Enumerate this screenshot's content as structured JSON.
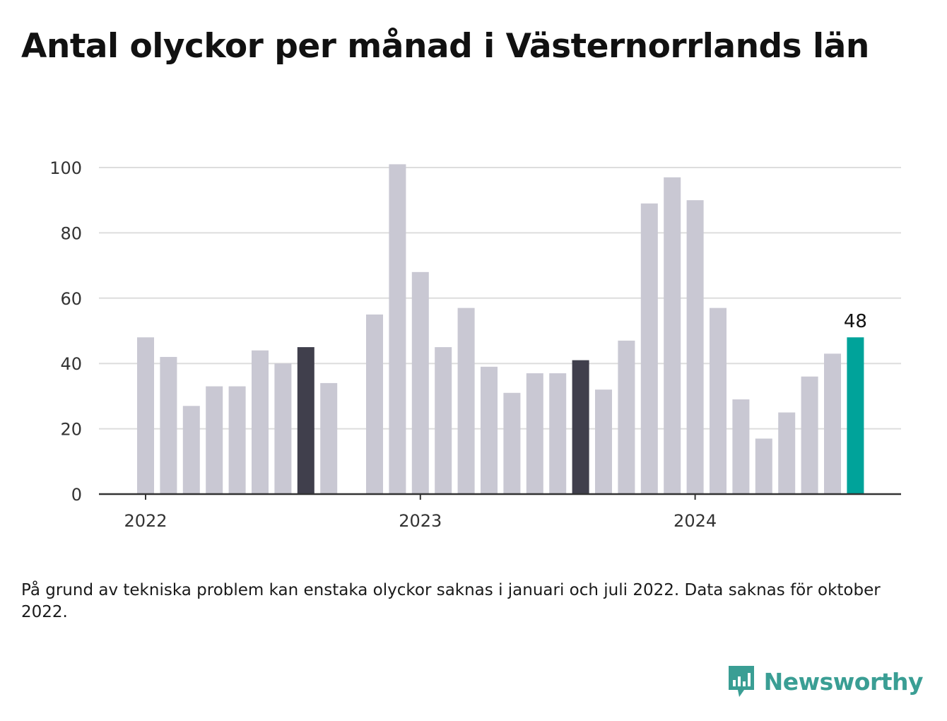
{
  "title": "Antal olyckor per månad i Västernorrlands län",
  "note": "På grund av tekniska problem kan enstaka olyckor saknas i januari och juli 2022. Data saknas för oktober 2022.",
  "brand": {
    "name": "Newsworthy",
    "icon": "newsworthy-logo-icon",
    "color": "#3a9e94"
  },
  "colors": {
    "default": "#c9c8d3",
    "highlight": "#403f4c",
    "latest": "#00a39a",
    "grid": "#dddddd",
    "axis": "#333333"
  },
  "chart_data": {
    "type": "bar",
    "title": "Antal olyckor per månad i Västernorrlands län",
    "xlabel": "",
    "ylabel": "",
    "ylim": [
      0,
      100
    ],
    "yticks": [
      0,
      20,
      40,
      60,
      80,
      100
    ],
    "xtick_labels": [
      {
        "label": "2022",
        "category": "2022-01"
      },
      {
        "label": "2023",
        "category": "2023-01"
      },
      {
        "label": "2024",
        "category": "2024-01"
      }
    ],
    "grid": true,
    "categories": [
      "2022-01",
      "2022-02",
      "2022-03",
      "2022-04",
      "2022-05",
      "2022-06",
      "2022-07",
      "2022-08",
      "2022-09",
      "2022-10",
      "2022-11",
      "2022-12",
      "2023-01",
      "2023-02",
      "2023-03",
      "2023-04",
      "2023-05",
      "2023-06",
      "2023-07",
      "2023-08",
      "2023-09",
      "2023-10",
      "2023-11",
      "2023-12",
      "2024-01",
      "2024-02",
      "2024-03",
      "2024-04",
      "2024-05",
      "2024-06",
      "2024-07",
      "2024-08"
    ],
    "values": [
      48,
      42,
      27,
      33,
      33,
      44,
      40,
      45,
      34,
      null,
      55,
      101,
      68,
      45,
      57,
      39,
      31,
      37,
      37,
      41,
      32,
      47,
      89,
      97,
      90,
      57,
      29,
      17,
      25,
      36,
      43,
      48
    ],
    "highlighted": [
      "2022-08",
      "2023-08"
    ],
    "latest": "2024-08",
    "value_labels": [
      {
        "category": "2024-08",
        "text": "48"
      }
    ]
  }
}
